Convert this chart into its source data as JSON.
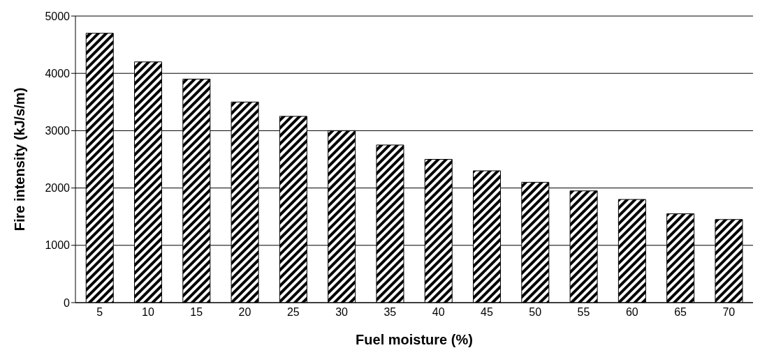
{
  "chart_data": {
    "type": "bar",
    "xlabel": "Fuel moisture (%)",
    "ylabel": "Fire intensity (kJ/s/m)",
    "categories": [
      "5",
      "10",
      "15",
      "20",
      "25",
      "30",
      "35",
      "40",
      "45",
      "50",
      "55",
      "60",
      "65",
      "70"
    ],
    "values": [
      4700,
      4200,
      3900,
      3500,
      3250,
      3000,
      2750,
      2500,
      2300,
      2100,
      1950,
      1800,
      1550,
      1450
    ],
    "color": "#000000",
    "ylim": [
      0,
      5000
    ],
    "yticks": [
      0,
      1000,
      2000,
      3000,
      4000,
      5000
    ],
    "grid": "y"
  }
}
